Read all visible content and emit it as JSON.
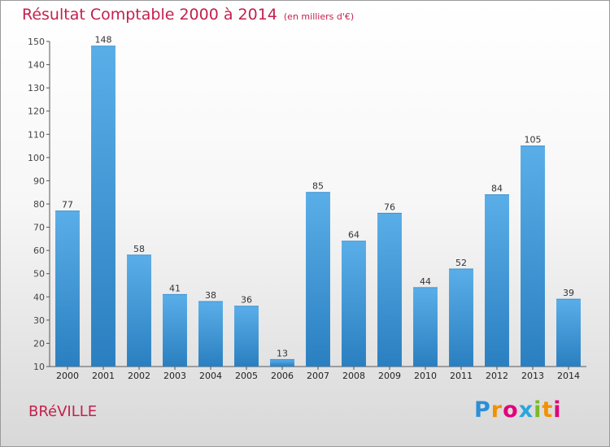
{
  "header": {
    "title": "Résultat Comptable 2000 à 2014",
    "subtitle": "(en milliers d'€)"
  },
  "footer": {
    "commune": "BRéVILLE",
    "logo_letters": [
      "P",
      "r",
      "o",
      "x",
      "i",
      "t",
      "i"
    ]
  },
  "colors": {
    "bar_top": "#5aaee8",
    "bar_bottom": "#2a7fc0",
    "title": "#c4204c"
  },
  "chart_data": {
    "type": "bar",
    "title": "Résultat Comptable 2000 à 2014",
    "subtitle": "(en milliers d'€)",
    "categories": [
      "2000",
      "2001",
      "2002",
      "2003",
      "2004",
      "2005",
      "2006",
      "2007",
      "2008",
      "2009",
      "2010",
      "2011",
      "2012",
      "2013",
      "2014"
    ],
    "values": [
      77,
      148,
      58,
      41,
      38,
      36,
      13,
      85,
      64,
      76,
      44,
      52,
      84,
      105,
      39
    ],
    "ylim": [
      10,
      150
    ],
    "yticks": [
      10,
      20,
      30,
      40,
      50,
      60,
      70,
      80,
      90,
      100,
      110,
      120,
      130,
      140,
      150
    ],
    "grid": false,
    "legend": "none"
  }
}
